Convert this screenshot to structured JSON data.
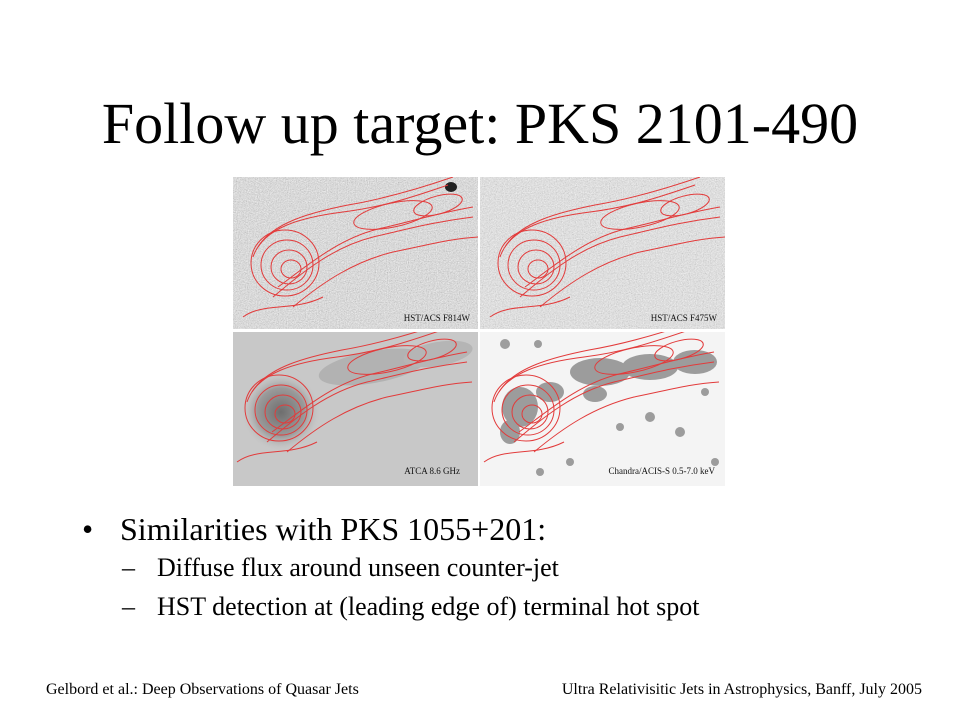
{
  "slide": {
    "title": "Follow up target: PKS 2101-490",
    "figure": {
      "panels": [
        {
          "label": "HST/ACS F814W"
        },
        {
          "label": "HST/ACS F475W"
        },
        {
          "label": "ATCA 8.6 GHz"
        },
        {
          "label": "Chandra/ACIS-S 0.5-7.0 keV"
        }
      ],
      "contour_color": "#e23b3b"
    },
    "bullets": [
      {
        "marker": "•",
        "text": "Similarities with PKS 1055+201:",
        "sub": [
          {
            "marker": "–",
            "text": "Diffuse flux around unseen counter-jet"
          },
          {
            "marker": "–",
            "text": "HST detection at (leading edge of) terminal hot spot"
          }
        ]
      }
    ],
    "footer": {
      "left": "Gelbord et al.: Deep Observations of Quasar Jets",
      "right": "Ultra Relativisitic Jets in Astrophysics, Banff, July 2005"
    }
  }
}
